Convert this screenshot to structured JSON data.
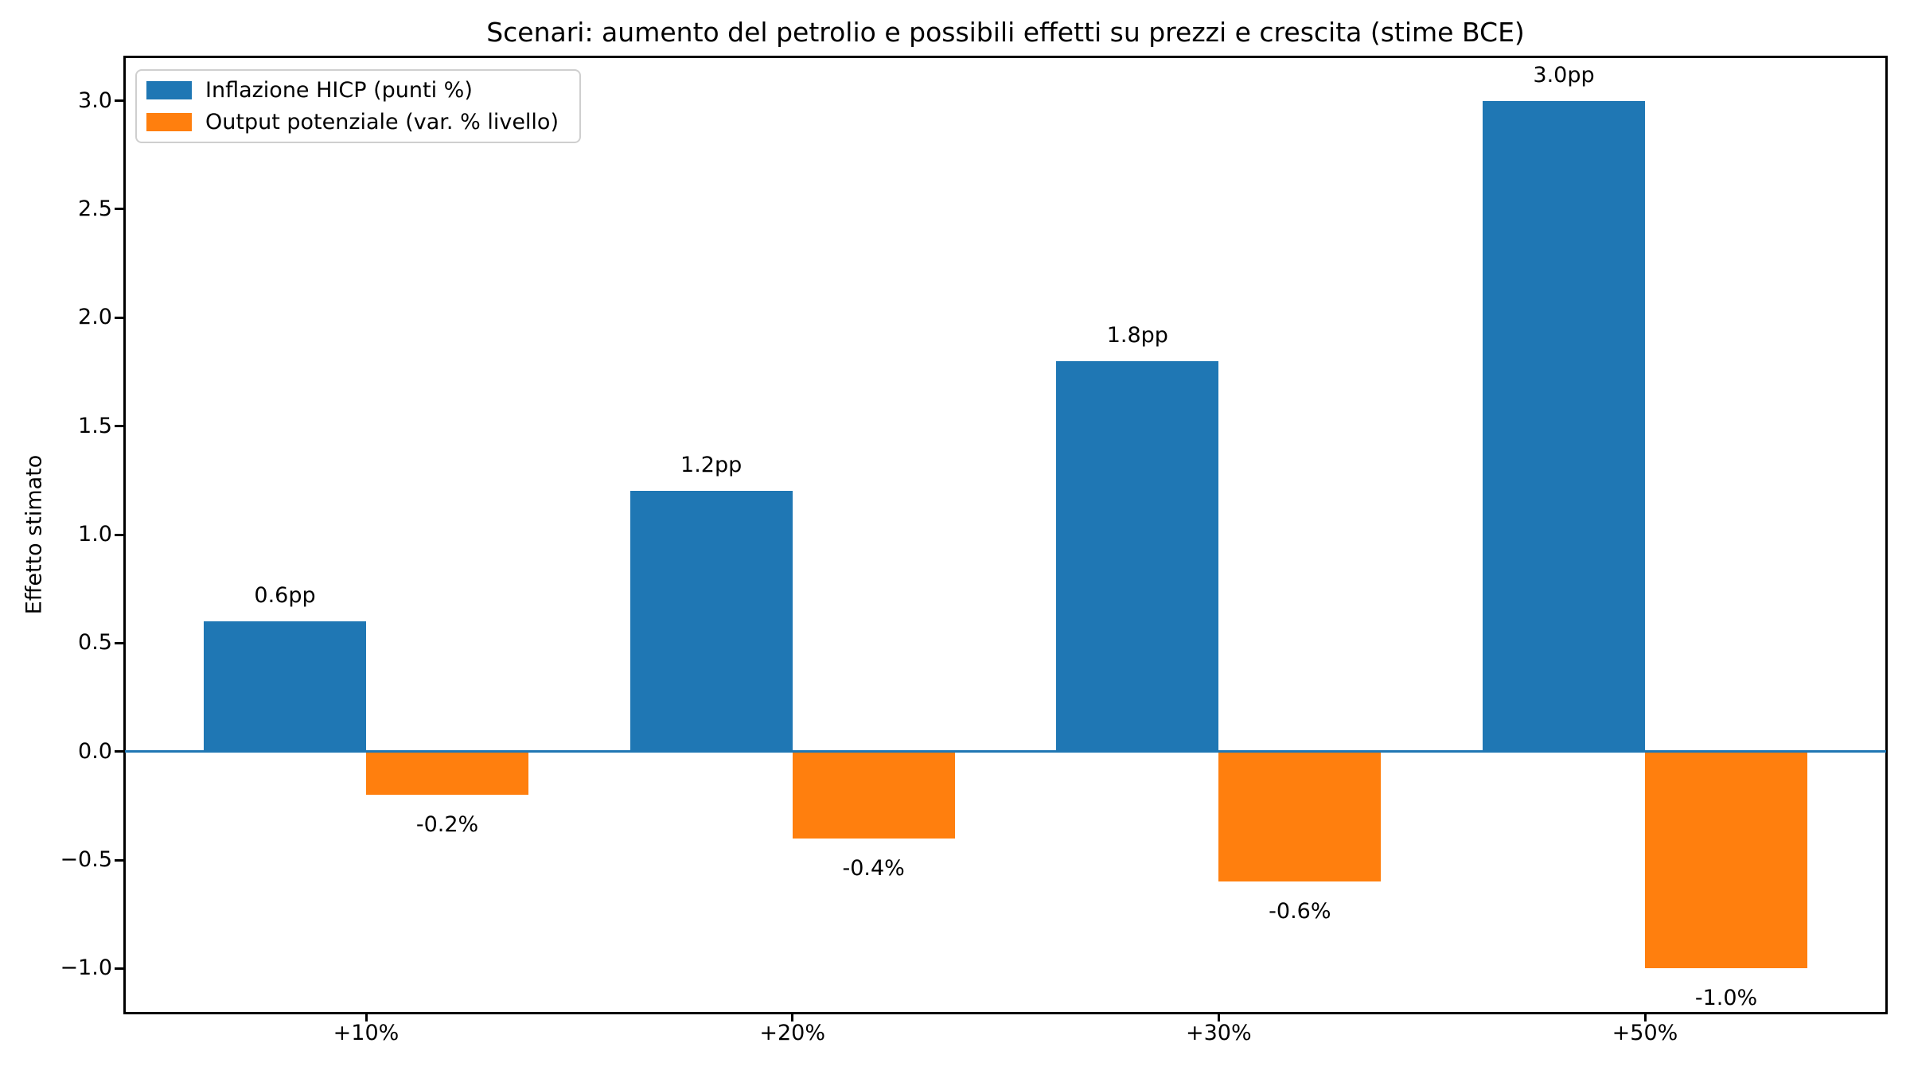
{
  "chart_data": {
    "type": "bar",
    "title": "Scenari: aumento del petrolio e possibili effetti su prezzi e crescita (stime BCE)",
    "ylabel": "Effetto stimato",
    "xlabel": "",
    "categories": [
      "+10%",
      "+20%",
      "+30%",
      "+50%"
    ],
    "series": [
      {
        "name": "Inflazione HICP (punti %)",
        "color": "#1f77b4",
        "values": [
          0.6,
          1.2,
          1.8,
          3.0
        ],
        "bar_labels": [
          "0.6pp",
          "1.2pp",
          "1.8pp",
          "3.0pp"
        ]
      },
      {
        "name": "Output potenziale (var. % livello)",
        "color": "#ff7f0e",
        "values": [
          -0.2,
          -0.4,
          -0.6,
          -1.0
        ],
        "bar_labels": [
          "-0.2%",
          "-0.4%",
          "-0.6%",
          "-1.0%"
        ]
      }
    ],
    "ylim": [
      -1.2,
      3.2
    ],
    "yticks": [
      -1.0,
      -0.5,
      0.0,
      0.5,
      1.0,
      1.5,
      2.0,
      2.5,
      3.0
    ],
    "ytick_labels": [
      "−1.0",
      "−0.5",
      "0.0",
      "0.5",
      "1.0",
      "1.5",
      "2.0",
      "2.5",
      "3.0"
    ],
    "zero_line_color": "#1f77b4",
    "legend_position": "upper left",
    "grid": false,
    "background_color": "#ffffff",
    "text_color": "#000000"
  }
}
